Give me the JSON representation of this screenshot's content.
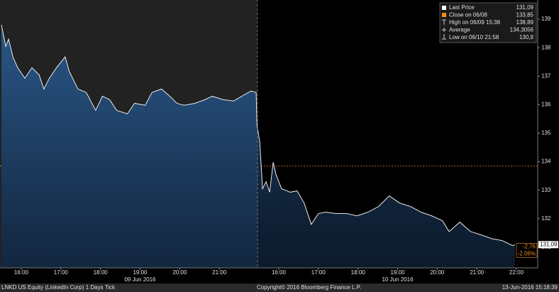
{
  "chart_data": {
    "type": "area",
    "series": [
      {
        "name": "Last Price",
        "color": "#ffffff",
        "x": [
          0,
          0.11,
          0.18,
          0.29,
          0.41,
          0.59,
          0.77,
          0.95,
          1.07,
          1.21,
          1.39,
          1.61,
          1.71,
          1.93,
          2.14,
          2.38,
          2.55,
          2.73,
          2.91,
          3.18,
          3.36,
          3.63,
          3.8,
          4.04,
          4.25,
          4.43,
          4.61,
          4.88,
          5.14,
          5.32,
          5.59,
          5.86,
          6.13,
          6.3,
          6.43,
          6.45,
          6.52,
          6.59,
          6.68,
          6.77,
          6.86,
          6.93,
          7.07,
          7.29,
          7.46,
          7.64,
          7.82,
          8.0,
          8.18,
          8.45,
          8.71,
          8.98,
          9.25,
          9.52,
          9.79,
          10.05,
          10.32,
          10.59,
          10.86,
          11.13,
          11.3,
          11.57,
          11.84,
          12.11,
          12.38,
          12.64,
          12.91,
          12.96
        ],
        "values": [
          138.8,
          138.05,
          138.3,
          137.68,
          137.3,
          136.93,
          137.3,
          137.05,
          136.55,
          136.93,
          137.3,
          137.68,
          137.18,
          136.55,
          136.43,
          135.8,
          136.3,
          136.18,
          135.8,
          135.68,
          136.05,
          135.98,
          136.43,
          136.55,
          136.3,
          136.05,
          135.98,
          136.05,
          136.18,
          136.3,
          136.18,
          136.13,
          136.35,
          136.48,
          136.43,
          135.3,
          134.68,
          133.05,
          133.3,
          132.93,
          133.98,
          133.55,
          133.05,
          132.93,
          132.98,
          132.55,
          131.8,
          132.18,
          132.23,
          132.18,
          132.18,
          132.1,
          132.23,
          132.43,
          132.8,
          132.55,
          132.43,
          132.23,
          132.1,
          131.93,
          131.55,
          131.88,
          131.55,
          131.43,
          131.3,
          131.23,
          131.05,
          131.09
        ]
      }
    ],
    "xlim": [
      0,
      13.5
    ],
    "xticks": [
      {
        "value": 0.5,
        "label": "16:00"
      },
      {
        "value": 1.5,
        "label": "17:00"
      },
      {
        "value": 2.5,
        "label": "18:00"
      },
      {
        "value": 3.5,
        "label": "19:00"
      },
      {
        "value": 4.5,
        "label": "20:00"
      },
      {
        "value": 5.5,
        "label": "21:00"
      },
      {
        "value": 7,
        "label": "16:00"
      },
      {
        "value": 8,
        "label": "17:00"
      },
      {
        "value": 9,
        "label": "18:00"
      },
      {
        "value": 10,
        "label": "19:00"
      },
      {
        "value": 11,
        "label": "20:00"
      },
      {
        "value": 12,
        "label": "21:00"
      },
      {
        "value": 13,
        "label": "22:00"
      }
    ],
    "date_labels": [
      {
        "value": 3.5,
        "label": "09 Jun 2016"
      },
      {
        "value": 10,
        "label": "10 Jun 2016"
      }
    ],
    "ylim": [
      130.275,
      139.675
    ],
    "yticks": [
      131,
      132,
      133,
      134,
      135,
      136,
      137,
      138,
      139
    ],
    "legend": {
      "labels": [
        "Last Price",
        "Close on 06/08",
        "High on 06/09 15:38",
        "Average",
        "Low on 06/10 21:58"
      ],
      "values": [
        131.09,
        133.85,
        138.89,
        134.3056,
        130.9
      ],
      "value_labels": [
        "131,09",
        "133,85",
        "138,89",
        "134,3056",
        "130,9"
      ]
    },
    "change_labels": [
      "-2,76",
      "-2.06%"
    ],
    "footer": {
      "left": "LNKD US Equity (LinkedIn Corp) 1 Days  Tick",
      "center": "Copyright© 2016 Bloomberg Finance L.P.",
      "right": "13-Jun-2016 15:18:39"
    }
  }
}
